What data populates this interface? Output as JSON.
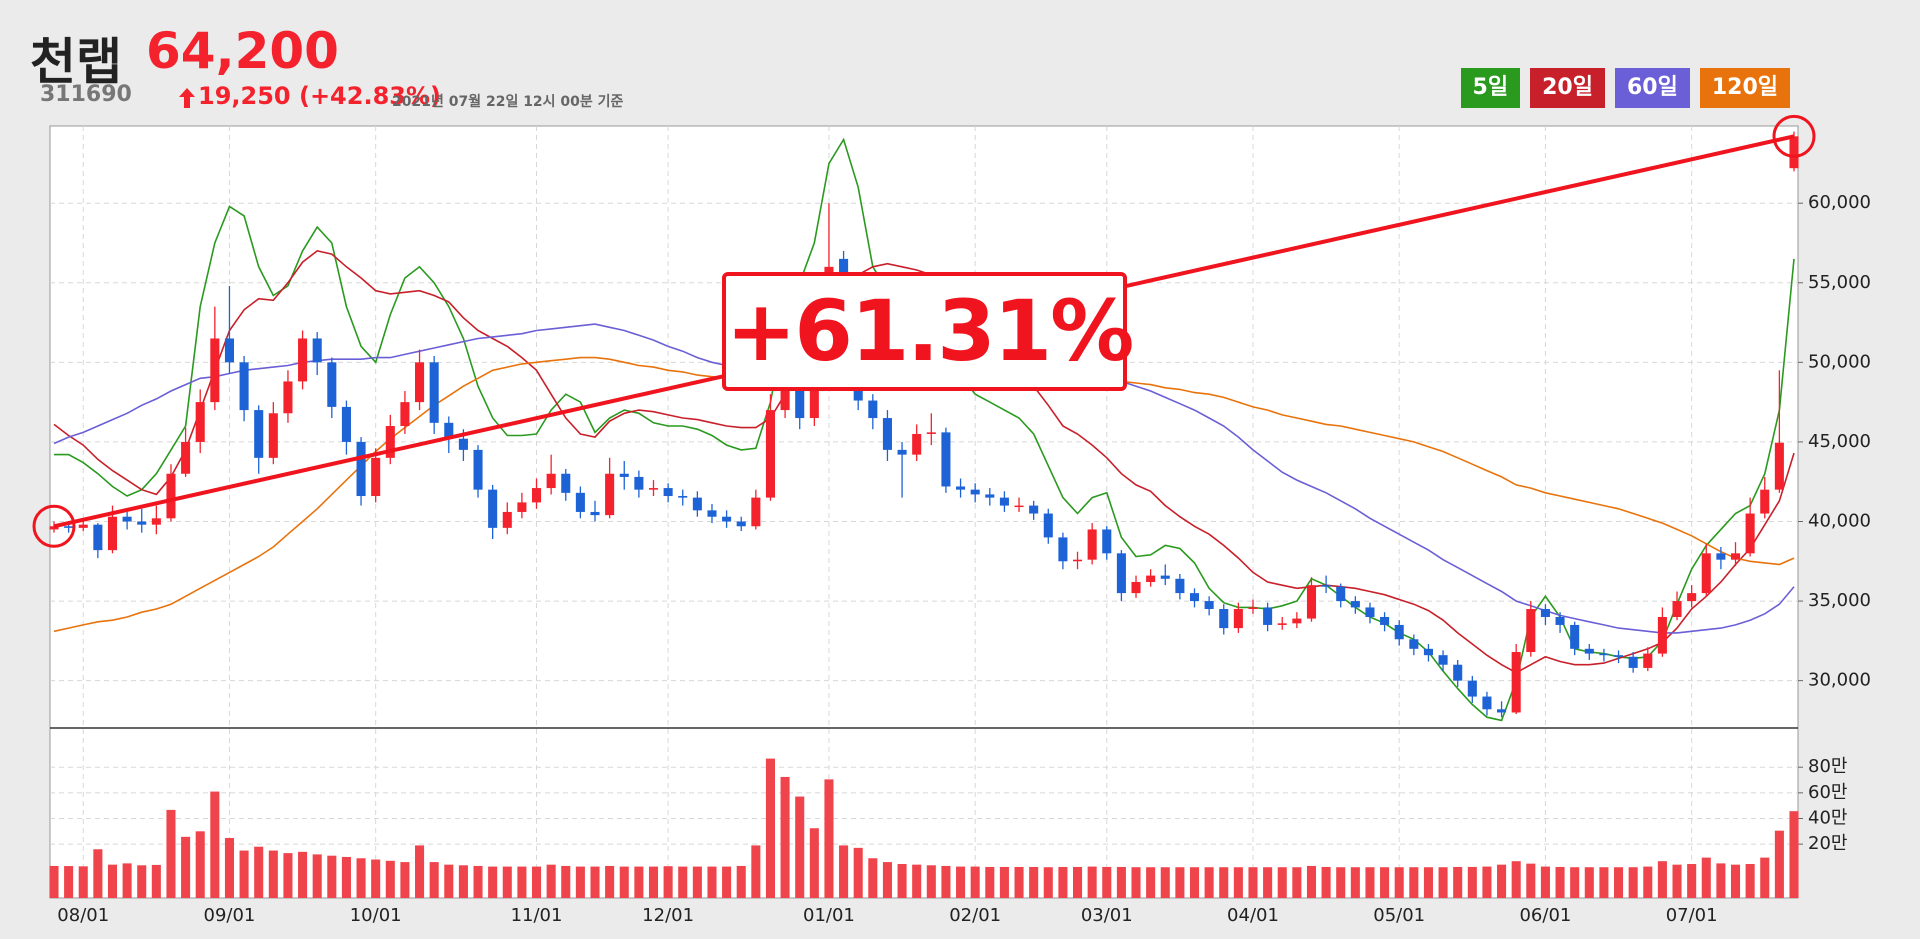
{
  "chart_data": {
    "type": "candlestick",
    "title": "천랩",
    "code": "311690",
    "price": "64,200",
    "change": "19,250 (+42.83%)",
    "timestamp": "2021년 07월 22일 12시 00분 기준",
    "annotation": "+61.31%",
    "up_color": "#f4222d",
    "down_color": "#1d63d6",
    "grid": true,
    "categories": [
      null,
      null,
      "08/01",
      null,
      null,
      null,
      null,
      null,
      null,
      null,
      null,
      null,
      "09/01",
      null,
      null,
      null,
      null,
      null,
      null,
      null,
      null,
      null,
      "10/01",
      null,
      null,
      null,
      null,
      null,
      null,
      null,
      null,
      null,
      null,
      "11/01",
      null,
      null,
      null,
      null,
      null,
      null,
      null,
      null,
      "12/01",
      null,
      null,
      null,
      null,
      null,
      null,
      null,
      null,
      null,
      null,
      "01/01",
      null,
      null,
      null,
      null,
      null,
      null,
      null,
      null,
      null,
      "02/01",
      null,
      null,
      null,
      null,
      null,
      null,
      null,
      null,
      "03/01",
      null,
      null,
      null,
      null,
      null,
      null,
      null,
      null,
      null,
      "04/01",
      null,
      null,
      null,
      null,
      null,
      null,
      null,
      null,
      null,
      "05/01",
      null,
      null,
      null,
      null,
      null,
      null,
      null,
      null,
      null,
      "06/01",
      null,
      null,
      null,
      null,
      null,
      null,
      null,
      null,
      null,
      "07/01",
      null,
      null,
      null,
      null,
      null,
      null,
      null
    ],
    "open": [
      39500,
      39700,
      39600,
      39800,
      38200,
      40300,
      40000,
      39800,
      40200,
      43000,
      45000,
      47500,
      51500,
      50000,
      47000,
      44000,
      46800,
      48800,
      51500,
      50000,
      47200,
      45000,
      41600,
      44000,
      46000,
      47500,
      50000,
      46200,
      45200,
      44500,
      42000,
      39600,
      40600,
      41200,
      42100,
      43000,
      41800,
      40600,
      40400,
      43000,
      42800,
      42000,
      42100,
      41600,
      41500,
      40700,
      40300,
      40000,
      39700,
      41500,
      47000,
      50200,
      46500,
      51000,
      56500,
      50000,
      47600,
      46500,
      44500,
      44200,
      45500,
      45600,
      42200,
      42000,
      41700,
      41500,
      41000,
      41000,
      40500,
      39000,
      37500,
      37600,
      39500,
      38000,
      35500,
      36200,
      36600,
      36400,
      35500,
      35000,
      34500,
      33300,
      34500,
      34600,
      33500,
      33600,
      33900,
      36000,
      35900,
      35000,
      34600,
      34000,
      33500,
      32600,
      32000,
      31600,
      31000,
      30000,
      29000,
      28200,
      28000,
      31800,
      34500,
      34000,
      33500,
      32000,
      31700,
      31600,
      31500,
      30800,
      31700,
      34000,
      35000,
      35500,
      38000,
      37600,
      38000,
      40500,
      42000,
      62200
    ],
    "high": [
      40000,
      39900,
      40100,
      39900,
      41000,
      40600,
      40800,
      41000,
      43600,
      45900,
      48300,
      53500,
      54800,
      50400,
      47300,
      47500,
      49500,
      52000,
      51900,
      50300,
      47600,
      45300,
      44600,
      46700,
      48200,
      50800,
      50400,
      46600,
      45800,
      44800,
      42300,
      41200,
      41800,
      42700,
      44200,
      43300,
      42200,
      41300,
      44000,
      43800,
      43200,
      42600,
      42400,
      42000,
      41900,
      41100,
      40700,
      40300,
      42000,
      48000,
      51000,
      50600,
      52000,
      60000,
      57000,
      50600,
      48000,
      47000,
      45000,
      46100,
      46800,
      45900,
      42700,
      42400,
      42100,
      41900,
      41500,
      41300,
      40800,
      39300,
      38100,
      39900,
      39700,
      38200,
      36600,
      37000,
      37300,
      36700,
      35800,
      35300,
      34800,
      34900,
      35100,
      34900,
      34000,
      34300,
      36500,
      36600,
      36100,
      35300,
      34900,
      34300,
      33800,
      32900,
      32300,
      31900,
      31300,
      30300,
      29300,
      28700,
      32300,
      35000,
      34800,
      34300,
      33700,
      32300,
      32000,
      31900,
      31800,
      32100,
      34600,
      35600,
      36000,
      38600,
      38400,
      38700,
      41500,
      42800,
      49500,
      64500
    ],
    "low": [
      39300,
      39300,
      39400,
      37700,
      38000,
      39500,
      39300,
      39200,
      40000,
      42800,
      44300,
      47000,
      49300,
      46300,
      43000,
      43600,
      46200,
      48300,
      49200,
      46500,
      44200,
      41000,
      41200,
      43600,
      45500,
      47000,
      45500,
      44300,
      43800,
      41500,
      38900,
      39200,
      40200,
      40800,
      41700,
      41300,
      40200,
      40000,
      40200,
      42000,
      41500,
      41600,
      41200,
      41000,
      40300,
      39900,
      39600,
      39400,
      39500,
      41300,
      46500,
      45800,
      46000,
      50500,
      49000,
      47000,
      45800,
      43800,
      41500,
      43800,
      44800,
      41800,
      41500,
      41200,
      41000,
      40600,
      40600,
      40100,
      38600,
      37000,
      37000,
      37300,
      37600,
      35000,
      35200,
      35900,
      36000,
      35100,
      34600,
      34100,
      32900,
      33000,
      34200,
      33100,
      33200,
      33300,
      33700,
      35500,
      34600,
      34200,
      33600,
      33100,
      32200,
      31600,
      31200,
      30600,
      29600,
      28600,
      27800,
      27700,
      27900,
      31500,
      33500,
      33000,
      31600,
      31300,
      31200,
      31100,
      30500,
      30600,
      31500,
      33800,
      34600,
      35300,
      37000,
      37200,
      37800,
      40200,
      41800,
      62000
    ],
    "close": [
      39700,
      39600,
      39800,
      38200,
      40300,
      40000,
      39800,
      40200,
      43000,
      45000,
      47500,
      51500,
      50000,
      47000,
      44000,
      46800,
      48800,
      51500,
      50000,
      47200,
      45000,
      41600,
      44000,
      46000,
      47500,
      50000,
      46200,
      45200,
      44500,
      42000,
      39600,
      40600,
      41200,
      42100,
      43000,
      41800,
      40600,
      40400,
      43000,
      42800,
      42000,
      42100,
      41600,
      41500,
      40700,
      40300,
      40000,
      39700,
      41500,
      47000,
      50200,
      46500,
      51000,
      56000,
      50000,
      47600,
      46500,
      44500,
      44200,
      45500,
      45600,
      42200,
      42000,
      41700,
      41500,
      41000,
      41000,
      40500,
      39000,
      37500,
      37600,
      39500,
      38000,
      35500,
      36200,
      36600,
      36400,
      35500,
      35000,
      34500,
      33300,
      34500,
      34600,
      33500,
      33600,
      33900,
      36000,
      35900,
      35000,
      34600,
      34000,
      33500,
      32600,
      32000,
      31600,
      31000,
      30000,
      29000,
      28200,
      28000,
      31800,
      34500,
      34000,
      33500,
      32000,
      31700,
      31600,
      31500,
      30800,
      31700,
      34000,
      35000,
      35500,
      38000,
      37600,
      38000,
      40500,
      42000,
      44950,
      64200
    ],
    "series": [
      {
        "name": "5일",
        "color": "#2a9a1f",
        "values": [
          44200,
          44200,
          43700,
          43000,
          42200,
          41600,
          42000,
          43000,
          44500,
          46000,
          53500,
          57500,
          59800,
          59200,
          56000,
          54200,
          54800,
          57000,
          58500,
          57500,
          53500,
          51000,
          50000,
          53000,
          55300,
          56000,
          55000,
          53500,
          51500,
          48500,
          46500,
          45400,
          45400,
          45500,
          47000,
          48000,
          47500,
          45600,
          46500,
          47000,
          46800,
          46200,
          46000,
          46000,
          45800,
          45400,
          44800,
          44500,
          44600,
          47500,
          52500,
          55000,
          57500,
          62500,
          64000,
          61000,
          56000,
          54500,
          52500,
          51000,
          50400,
          50100,
          49200,
          48000,
          47500,
          47000,
          46500,
          45500,
          43500,
          41500,
          40500,
          41500,
          41800,
          39000,
          37800,
          37900,
          38500,
          38300,
          37400,
          35800,
          34900,
          34600,
          34600,
          34500,
          34700,
          35000,
          36400,
          36000,
          35300,
          34600,
          34000,
          33600,
          33000,
          32600,
          31800,
          30600,
          29500,
          28500,
          27700,
          27500,
          30000,
          34000,
          35300,
          34000,
          32000,
          31800,
          31700,
          31500,
          31400,
          31500,
          32500,
          34800,
          37000,
          38500,
          39500,
          40500,
          41000,
          43000,
          47000,
          56500
        ]
      },
      {
        "name": "20일",
        "color": "#c8202a",
        "values": [
          46100,
          45400,
          44800,
          43900,
          43200,
          42600,
          42000,
          41700,
          42800,
          44500,
          47000,
          49500,
          52000,
          53300,
          54000,
          53900,
          55000,
          56300,
          57000,
          56800,
          56000,
          55300,
          54500,
          54300,
          54400,
          54500,
          54200,
          53800,
          52800,
          52000,
          51500,
          51000,
          50300,
          49500,
          48000,
          46500,
          45500,
          45300,
          46300,
          46800,
          47000,
          46900,
          46700,
          46500,
          46400,
          46200,
          46000,
          45900,
          45900,
          46500,
          48000,
          49500,
          51000,
          53000,
          54500,
          55500,
          56000,
          56200,
          56000,
          55800,
          55500,
          54800,
          53700,
          52500,
          51200,
          50000,
          49700,
          48500,
          47300,
          46000,
          45500,
          44800,
          44000,
          43000,
          42300,
          41900,
          41000,
          40300,
          39700,
          39200,
          38500,
          37700,
          36800,
          36200,
          36000,
          35800,
          35900,
          36000,
          35900,
          35800,
          35600,
          35400,
          35100,
          34800,
          34400,
          33800,
          33000,
          32300,
          31600,
          31000,
          30500,
          31000,
          31500,
          31200,
          31000,
          31000,
          31100,
          31400,
          31700,
          32000,
          32400,
          33300,
          34500,
          35300,
          36200,
          37300,
          38300,
          39800,
          41300,
          44300
        ]
      },
      {
        "name": "60일",
        "color": "#6a5fd6",
        "values": [
          44900,
          45300,
          45600,
          46000,
          46400,
          46800,
          47300,
          47700,
          48200,
          48600,
          49000,
          49100,
          49300,
          49500,
          49600,
          49700,
          49800,
          50000,
          50100,
          50200,
          50200,
          50200,
          50300,
          50300,
          50500,
          50700,
          50900,
          51100,
          51300,
          51500,
          51600,
          51700,
          51800,
          52000,
          52100,
          52200,
          52300,
          52400,
          52200,
          52000,
          51700,
          51400,
          51000,
          50700,
          50300,
          50000,
          49800,
          49600,
          49500,
          49300,
          49200,
          49000,
          48900,
          48700,
          48600,
          48500,
          48500,
          48600,
          48600,
          48700,
          48800,
          48800,
          48900,
          49000,
          49100,
          49200,
          49300,
          49300,
          49400,
          49500,
          49500,
          49300,
          49100,
          48800,
          48500,
          48200,
          47800,
          47400,
          47000,
          46500,
          46000,
          45300,
          44500,
          43800,
          43100,
          42600,
          42200,
          41800,
          41300,
          40800,
          40200,
          39700,
          39200,
          38700,
          38200,
          37600,
          37100,
          36600,
          36100,
          35600,
          35000,
          34700,
          34400,
          34100,
          33900,
          33700,
          33500,
          33300,
          33200,
          33100,
          33000,
          33000,
          33100,
          33200,
          33300,
          33500,
          33800,
          34200,
          34800,
          35900
        ]
      },
      {
        "name": "120일",
        "color": "#e8730c",
        "values": [
          33100,
          33300,
          33500,
          33700,
          33800,
          34000,
          34300,
          34500,
          34800,
          35300,
          35800,
          36300,
          36800,
          37300,
          37800,
          38400,
          39200,
          40000,
          40800,
          41700,
          42600,
          43500,
          44400,
          45200,
          45900,
          46600,
          47300,
          47900,
          48500,
          49000,
          49500,
          49700,
          49900,
          50000,
          50100,
          50200,
          50300,
          50300,
          50200,
          50000,
          49800,
          49700,
          49500,
          49400,
          49200,
          49100,
          49000,
          49000,
          49000,
          49000,
          49100,
          49100,
          49200,
          49300,
          49500,
          49600,
          49800,
          49900,
          50000,
          50100,
          50100,
          50100,
          50100,
          50000,
          49900,
          49800,
          49700,
          49600,
          49400,
          49300,
          49100,
          49000,
          48900,
          48800,
          48700,
          48600,
          48400,
          48300,
          48100,
          48000,
          47800,
          47500,
          47200,
          47000,
          46700,
          46500,
          46300,
          46100,
          46000,
          45800,
          45600,
          45400,
          45200,
          45000,
          44700,
          44400,
          44000,
          43600,
          43200,
          42800,
          42300,
          42100,
          41800,
          41600,
          41400,
          41200,
          41000,
          40800,
          40500,
          40200,
          39900,
          39500,
          39100,
          38600,
          38100,
          37700,
          37500,
          37400,
          37300,
          37700
        ]
      }
    ],
    "ylim": [
      27150,
      64850
    ],
    "yticks": [
      {
        "value": 30000,
        "label": "30,000"
      },
      {
        "value": 35000,
        "label": "35,000"
      },
      {
        "value": 40000,
        "label": "40,000"
      },
      {
        "value": 45000,
        "label": "45,000"
      },
      {
        "value": 50000,
        "label": "50,000"
      },
      {
        "value": 55000,
        "label": "55,000"
      },
      {
        "value": 60000,
        "label": "60,000"
      }
    ],
    "volume": {
      "color": "#f0444c",
      "values": [
        30000,
        29000,
        27000,
        160000,
        40000,
        50000,
        35000,
        38000,
        467000,
        257000,
        300000,
        610000,
        248000,
        150000,
        180000,
        150000,
        130000,
        140000,
        120000,
        110000,
        100000,
        90000,
        80000,
        70000,
        60000,
        190000,
        60000,
        40000,
        35000,
        30000,
        25000,
        25000,
        25000,
        25000,
        40000,
        30000,
        25000,
        25000,
        30000,
        25000,
        25000,
        25000,
        28000,
        25000,
        25000,
        25000,
        25000,
        30000,
        190000,
        867000,
        724000,
        571000,
        324000,
        705000,
        190000,
        171000,
        90000,
        60000,
        45000,
        40000,
        35000,
        30000,
        25000,
        25000,
        22000,
        22000,
        22000,
        22000,
        20000,
        22000,
        22000,
        25000,
        22000,
        22000,
        20000,
        20000,
        20000,
        20000,
        20000,
        20000,
        20000,
        20000,
        20000,
        20000,
        20000,
        20000,
        30000,
        22000,
        20000,
        20000,
        20000,
        20000,
        20000,
        20000,
        20000,
        20000,
        22000,
        22000,
        25000,
        40000,
        67000,
        48000,
        25000,
        22000,
        20000,
        20000,
        20000,
        20000,
        20000,
        25000,
        67000,
        40000,
        45000,
        95000,
        50000,
        40000,
        45000,
        95000,
        305000,
        457000
      ],
      "ylim": [
        -220000,
        1090000
      ],
      "yticks": [
        {
          "value": 200000,
          "label": "20만"
        },
        {
          "value": 400000,
          "label": "40만"
        },
        {
          "value": 600000,
          "label": "60만"
        },
        {
          "value": 800000,
          "label": "80만"
        }
      ]
    }
  }
}
